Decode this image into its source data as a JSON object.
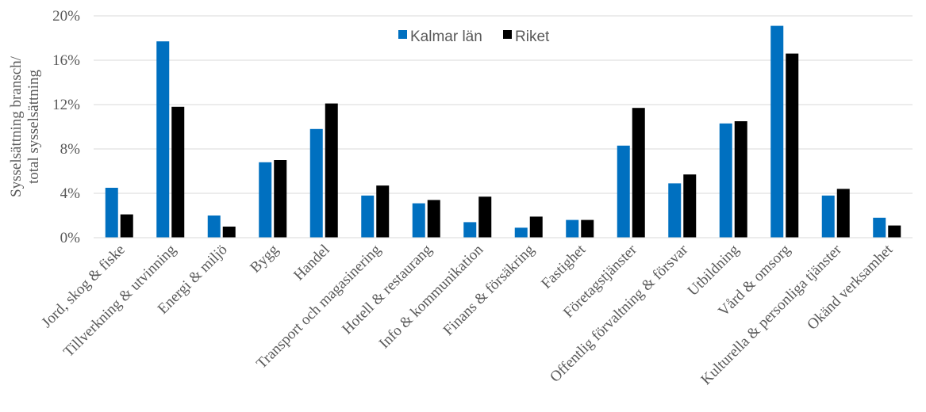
{
  "chart_data": {
    "type": "bar",
    "ylabel_lines": [
      "Sysselsättning bransch/",
      "total sysselsättning"
    ],
    "ylim": [
      0,
      20
    ],
    "yticks": [
      0,
      4,
      8,
      12,
      16,
      20
    ],
    "ytick_labels": [
      "0%",
      "4%",
      "8%",
      "12%",
      "16%",
      "20%"
    ],
    "grid": true,
    "legend_position": "top-center",
    "categories": [
      "Jord, skog & fiske",
      "Tillverkning & utvinning",
      "Energi & miljö",
      "Bygg",
      "Handel",
      "Transport och magasinering",
      "Hotell & restaurang",
      "Info & kommunikation",
      "Finans & försäkring",
      "Fastighet",
      "Företagstjänster",
      "Offentlig förvaltning & försvar",
      "Utbildning",
      "Vård & omsorg",
      "Kulturella & personliga tjänster",
      "Okänd verksamhet"
    ],
    "series": [
      {
        "name": "Kalmar län",
        "color": "#0070C0",
        "values": [
          4.5,
          17.7,
          2.0,
          6.8,
          9.8,
          3.8,
          3.1,
          1.4,
          0.9,
          1.6,
          8.3,
          4.9,
          10.3,
          19.1,
          3.8,
          1.8
        ]
      },
      {
        "name": "Riket",
        "color": "#000000",
        "values": [
          2.1,
          11.8,
          1.0,
          7.0,
          12.1,
          4.7,
          3.4,
          3.7,
          1.9,
          1.6,
          11.7,
          5.7,
          10.5,
          16.6,
          4.4,
          1.1
        ]
      }
    ]
  }
}
